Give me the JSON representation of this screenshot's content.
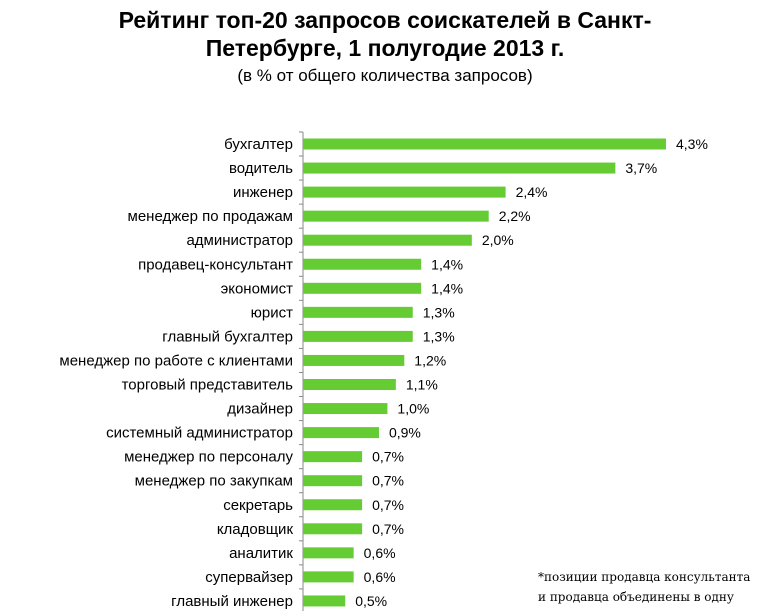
{
  "title_lines": [
    "Рейтинг топ-20 запросов соискателей в Санкт-",
    "Петербурге,  1 полугодие 2013 г."
  ],
  "subtitle": "(в % от общего количества запросов)",
  "footnote_lines": [
    "*позиции продавца консультанта",
    "и продавца объединены в одну"
  ],
  "colors": {
    "bar": "#66cc33",
    "axis": "#888888"
  },
  "chart_data": {
    "type": "bar",
    "orientation": "horizontal",
    "title": "Рейтинг топ-20 запросов соискателей в Санкт-Петербурге,  1 полугодие 2013 г.",
    "subtitle": "(в % от общего количества запросов)",
    "categories": [
      "бухгалтер",
      "водитель",
      "инженер",
      "менеджер по продажам",
      "администратор",
      "продавец-консультант",
      "экономист",
      "юрист",
      "главный бухгалтер",
      "менеджер по работе с клиентами",
      "торговый представитель",
      "дизайнер",
      "системный администратор",
      "менеджер по персоналу",
      "менеджер по закупкам",
      "секретарь",
      "кладовщик",
      "аналитик",
      "супервайзер",
      "главный инженер"
    ],
    "values": [
      4.3,
      3.7,
      2.4,
      2.2,
      2.0,
      1.4,
      1.4,
      1.3,
      1.3,
      1.2,
      1.1,
      1.0,
      0.9,
      0.7,
      0.7,
      0.7,
      0.7,
      0.6,
      0.6,
      0.5
    ],
    "value_labels": [
      "4,3%",
      "3,7%",
      "2,4%",
      "2,2%",
      "2,0%",
      "1,4%",
      "1,4%",
      "1,3%",
      "1,3%",
      "1,2%",
      "1,1%",
      "1,0%",
      "0,9%",
      "0,7%",
      "0,7%",
      "0,7%",
      "0,7%",
      "0,6%",
      "0,6%",
      "0,5%"
    ],
    "xlim": [
      0,
      4.3
    ],
    "grid": false,
    "legend": "none"
  }
}
